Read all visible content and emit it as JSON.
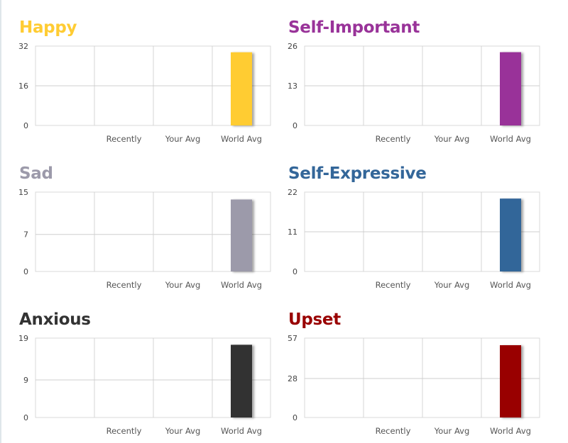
{
  "chart_data": [
    {
      "type": "bar",
      "title": "Happy",
      "color": "#ffcc33",
      "categories": [
        "Recently",
        "Your Avg",
        "World Avg"
      ],
      "values": [
        0,
        0,
        29.5
      ],
      "ylim": [
        0,
        32
      ],
      "yticks": [
        0,
        16,
        32
      ],
      "grid": true
    },
    {
      "type": "bar",
      "title": "Self-Important",
      "color": "#993399",
      "categories": [
        "Recently",
        "Your Avg",
        "World Avg"
      ],
      "values": [
        0,
        0,
        24
      ],
      "ylim": [
        0,
        26
      ],
      "yticks": [
        0,
        13,
        26
      ],
      "grid": true
    },
    {
      "type": "bar",
      "title": "Sad",
      "color": "#9c9aaa",
      "categories": [
        "Recently",
        "Your Avg",
        "World Avg"
      ],
      "values": [
        0,
        0,
        13.6
      ],
      "ylim": [
        0,
        15
      ],
      "yticks": [
        0,
        7,
        15
      ],
      "grid": true
    },
    {
      "type": "bar",
      "title": "Self-Expressive",
      "color": "#336699",
      "categories": [
        "Recently",
        "Your Avg",
        "World Avg"
      ],
      "values": [
        0,
        0,
        20.2
      ],
      "ylim": [
        0,
        22
      ],
      "yticks": [
        0,
        11,
        22
      ],
      "grid": true
    },
    {
      "type": "bar",
      "title": "Anxious",
      "color": "#333333",
      "categories": [
        "Recently",
        "Your Avg",
        "World Avg"
      ],
      "values": [
        0,
        0,
        17.4
      ],
      "ylim": [
        0,
        19
      ],
      "yticks": [
        0,
        9,
        19
      ],
      "grid": true
    },
    {
      "type": "bar",
      "title": "Upset",
      "color": "#990000",
      "categories": [
        "Recently",
        "Your Avg",
        "World Avg"
      ],
      "values": [
        0,
        0,
        51.9
      ],
      "ylim": [
        0,
        57
      ],
      "yticks": [
        0,
        28,
        57
      ],
      "grid": true
    }
  ]
}
